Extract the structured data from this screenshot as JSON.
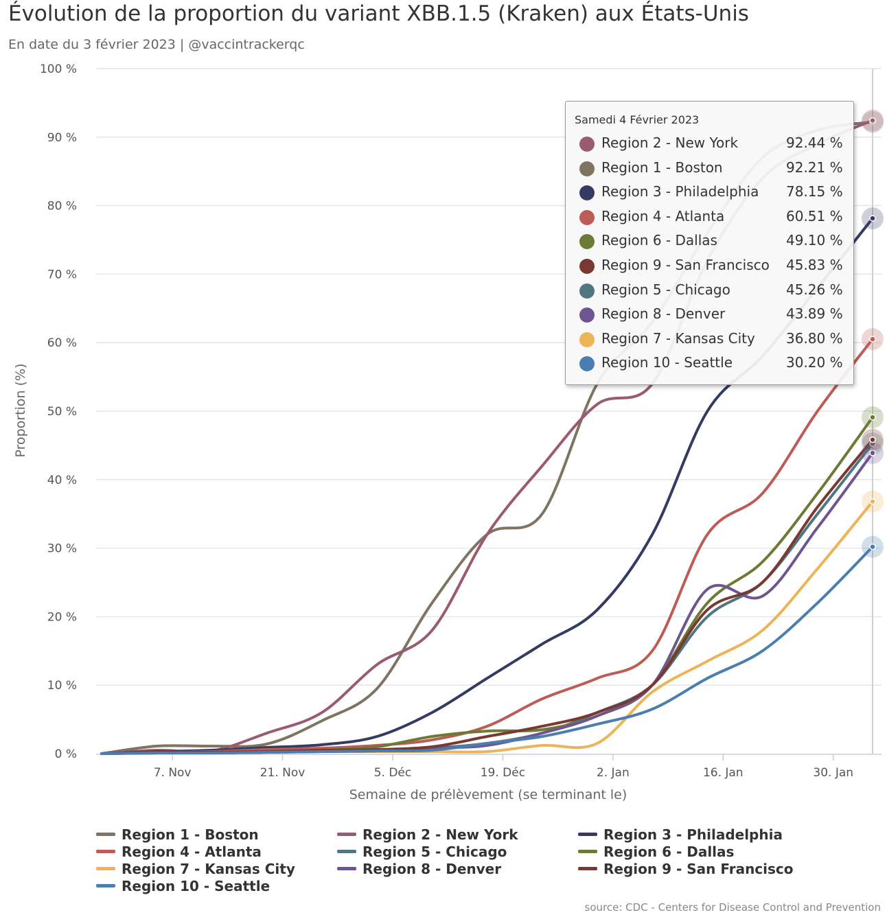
{
  "header": {
    "title": "Évolution de la proportion du variant XBB.1.5 (Kraken) aux États-Unis",
    "subtitle": "En date du 3 février 2023 | @vaccintrackerqc"
  },
  "source": "source: CDC - Centers for Disease Control and Prevention",
  "chart_data": {
    "type": "line",
    "title": "Évolution de la proportion du variant XBB.1.5 (Kraken) aux États-Unis",
    "subtitle": "En date du 3 février 2023 | @vaccintrackerqc",
    "xlabel": "Semaine de prélèvement (se terminant le)",
    "ylabel": "Proportion (%)",
    "ylim": [
      0,
      100
    ],
    "yticks": [
      "0 %",
      "10 %",
      "20 %",
      "30 %",
      "40 %",
      "50 %",
      "60 %",
      "70 %",
      "80 %",
      "90 %",
      "100 %"
    ],
    "xticks": [
      "7. Nov",
      "21. Nov",
      "5. Déc",
      "19. Déc",
      "2. Jan",
      "16. Jan",
      "30. Jan"
    ],
    "x": [
      "2022-10-29",
      "2022-11-05",
      "2022-11-12",
      "2022-11-19",
      "2022-11-26",
      "2022-12-03",
      "2022-12-10",
      "2022-12-17",
      "2022-12-24",
      "2022-12-31",
      "2023-01-07",
      "2023-01-14",
      "2023-01-21",
      "2023-01-28",
      "2023-02-04"
    ],
    "grid": true,
    "legend_position": "bottom",
    "series": [
      {
        "name": "Region 1 - Boston",
        "color": "#7f7462",
        "values": [
          0.0,
          1.1,
          1.1,
          1.4,
          4.8,
          9.5,
          22.0,
          32.0,
          35.0,
          54.0,
          63.0,
          76.0,
          87.0,
          91.0,
          92.21
        ]
      },
      {
        "name": "Region 2 - New York",
        "color": "#9a5a70",
        "values": [
          0.0,
          0.5,
          0.4,
          3.0,
          6.0,
          13.0,
          18.0,
          32.0,
          42.0,
          51.0,
          54.0,
          72.0,
          84.0,
          89.0,
          92.44
        ]
      },
      {
        "name": "Region 3 - Philadelphia",
        "color": "#343a62",
        "values": [
          0.0,
          0.3,
          0.5,
          0.9,
          1.3,
          2.5,
          6.0,
          11.0,
          16.0,
          21.0,
          32.0,
          50.0,
          58.0,
          68.0,
          78.15
        ]
      },
      {
        "name": "Region 4 - Atlanta",
        "color": "#bd5c56",
        "values": [
          0.0,
          0.2,
          0.3,
          0.6,
          0.8,
          1.2,
          2.0,
          4.0,
          8.0,
          11.0,
          15.0,
          32.0,
          38.0,
          50.0,
          60.51
        ]
      },
      {
        "name": "Region 5 - Chicago",
        "color": "#4f7781",
        "values": [
          0.0,
          0.1,
          0.1,
          0.2,
          0.3,
          0.5,
          0.8,
          1.5,
          3.0,
          6.0,
          10.0,
          20.0,
          25.0,
          35.0,
          45.26
        ]
      },
      {
        "name": "Region 6 - Dallas",
        "color": "#6b7a35",
        "values": [
          0.0,
          0.1,
          0.2,
          0.3,
          0.5,
          1.0,
          2.5,
          3.3,
          3.5,
          5.5,
          10.0,
          22.0,
          28.0,
          38.0,
          49.1
        ]
      },
      {
        "name": "Region 7 - Kansas City",
        "color": "#edb457",
        "values": [
          0.0,
          0.1,
          0.1,
          0.2,
          0.3,
          0.3,
          0.3,
          0.3,
          1.2,
          1.5,
          9.0,
          13.5,
          18.0,
          27.0,
          36.8
        ]
      },
      {
        "name": "Region 8 - Denver",
        "color": "#6e5590",
        "values": [
          0.0,
          0.1,
          0.1,
          0.2,
          0.3,
          0.4,
          0.8,
          1.2,
          3.0,
          5.5,
          10.0,
          24.0,
          23.0,
          33.0,
          43.89
        ]
      },
      {
        "name": "Region 9 - San Francisco",
        "color": "#793830",
        "values": [
          0.0,
          0.2,
          0.2,
          0.3,
          0.5,
          0.6,
          1.0,
          2.5,
          4.0,
          6.0,
          10.0,
          21.0,
          25.0,
          36.0,
          45.83
        ]
      },
      {
        "name": "Region 10 - Seattle",
        "color": "#4a7eb0",
        "values": [
          0.0,
          0.1,
          0.1,
          0.2,
          0.3,
          0.4,
          0.5,
          1.5,
          2.5,
          4.3,
          6.5,
          11.0,
          15.0,
          22.0,
          30.2
        ]
      }
    ],
    "tooltip": {
      "date": "Samedi 4 Février 2023",
      "rows": [
        {
          "name": "Region 2 - New York",
          "value": "92.44 %",
          "color": "#9a5a70"
        },
        {
          "name": "Region 1 - Boston",
          "value": "92.21 %",
          "color": "#7f7462"
        },
        {
          "name": "Region 3 - Philadelphia",
          "value": "78.15 %",
          "color": "#343a62"
        },
        {
          "name": "Region 4 - Atlanta",
          "value": "60.51 %",
          "color": "#bd5c56"
        },
        {
          "name": "Region 6 - Dallas",
          "value": "49.10 %",
          "color": "#6b7a35"
        },
        {
          "name": "Region 9 - San Francisco",
          "value": "45.83 %",
          "color": "#793830"
        },
        {
          "name": "Region 5 - Chicago",
          "value": "45.26 %",
          "color": "#4f7781"
        },
        {
          "name": "Region 8 - Denver",
          "value": "43.89 %",
          "color": "#6e5590"
        },
        {
          "name": "Region 7 - Kansas City",
          "value": "36.80 %",
          "color": "#edb457"
        },
        {
          "name": "Region 10 - Seattle",
          "value": "30.20 %",
          "color": "#4a7eb0"
        }
      ]
    },
    "legend": [
      "Region 1 - Boston",
      "Region 2 - New York",
      "Region 3 - Philadelphia",
      "Region 4 - Atlanta",
      "Region 5 - Chicago",
      "Region 6 - Dallas",
      "Region 7 - Kansas City",
      "Region 8 - Denver",
      "Region 9 - San Francisco",
      "Region 10 - Seattle"
    ]
  }
}
